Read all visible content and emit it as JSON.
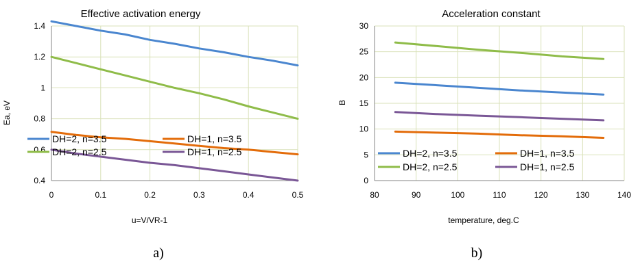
{
  "chart_data": [
    {
      "type": "line",
      "title": "Effective activation energy",
      "xlabel": "u=V/VR-1",
      "ylabel": "Ea, eV",
      "xlim": [
        0,
        0.5
      ],
      "ylim": [
        0.4,
        1.4
      ],
      "x_ticks": [
        "0",
        "0.1",
        "0.2",
        "0.3",
        "0.4",
        "0.5"
      ],
      "y_ticks": [
        "0.4",
        "0.6",
        "0.8",
        "1",
        "1.2",
        "1.4"
      ],
      "x": [
        0,
        0.05,
        0.1,
        0.15,
        0.2,
        0.25,
        0.3,
        0.35,
        0.4,
        0.45,
        0.5
      ],
      "grid": true,
      "legend_position": "middle",
      "series": [
        {
          "name": "DH=2, n=3.5",
          "color": "#4a86cf",
          "values": [
            1.43,
            1.4,
            1.37,
            1.345,
            1.31,
            1.285,
            1.255,
            1.23,
            1.2,
            1.175,
            1.145
          ]
        },
        {
          "name": "DH=1, n=3.5",
          "color": "#e36c0a",
          "values": [
            0.715,
            0.695,
            0.68,
            0.67,
            0.655,
            0.64,
            0.625,
            0.61,
            0.6,
            0.585,
            0.57
          ]
        },
        {
          "name": "DH=2, n=2.5",
          "color": "#8fbc49",
          "values": [
            1.2,
            1.16,
            1.12,
            1.08,
            1.04,
            1.0,
            0.965,
            0.925,
            0.88,
            0.84,
            0.8
          ]
        },
        {
          "name": "DH=1, n=2.5",
          "color": "#7a5796",
          "values": [
            0.6,
            0.575,
            0.555,
            0.535,
            0.515,
            0.5,
            0.48,
            0.46,
            0.44,
            0.42,
            0.4
          ]
        }
      ]
    },
    {
      "type": "line",
      "title": "Acceleration constant",
      "xlabel": "temperature, deg.C",
      "ylabel": "B",
      "xlim": [
        80,
        140
      ],
      "ylim": [
        0,
        30
      ],
      "x_ticks": [
        "80",
        "90",
        "100",
        "110",
        "120",
        "130",
        "140"
      ],
      "y_ticks": [
        "0",
        "5",
        "10",
        "15",
        "20",
        "25",
        "30"
      ],
      "x": [
        85,
        95,
        105,
        115,
        125,
        135
      ],
      "grid": true,
      "legend_position": "bottom",
      "series": [
        {
          "name": "DH=2, n=3.5",
          "color": "#4a86cf",
          "values": [
            19.0,
            18.5,
            18.0,
            17.5,
            17.1,
            16.7
          ]
        },
        {
          "name": "DH=1, n=3.5",
          "color": "#e36c0a",
          "values": [
            9.5,
            9.3,
            9.1,
            8.8,
            8.6,
            8.3
          ]
        },
        {
          "name": "DH=2, n=2.5",
          "color": "#8fbc49",
          "values": [
            26.8,
            26.1,
            25.4,
            24.8,
            24.1,
            23.6
          ]
        },
        {
          "name": "DH=1, n=2.5",
          "color": "#7a5796",
          "values": [
            13.3,
            12.9,
            12.6,
            12.3,
            12.0,
            11.7
          ]
        }
      ]
    }
  ],
  "captions": [
    "a)",
    "b)"
  ]
}
